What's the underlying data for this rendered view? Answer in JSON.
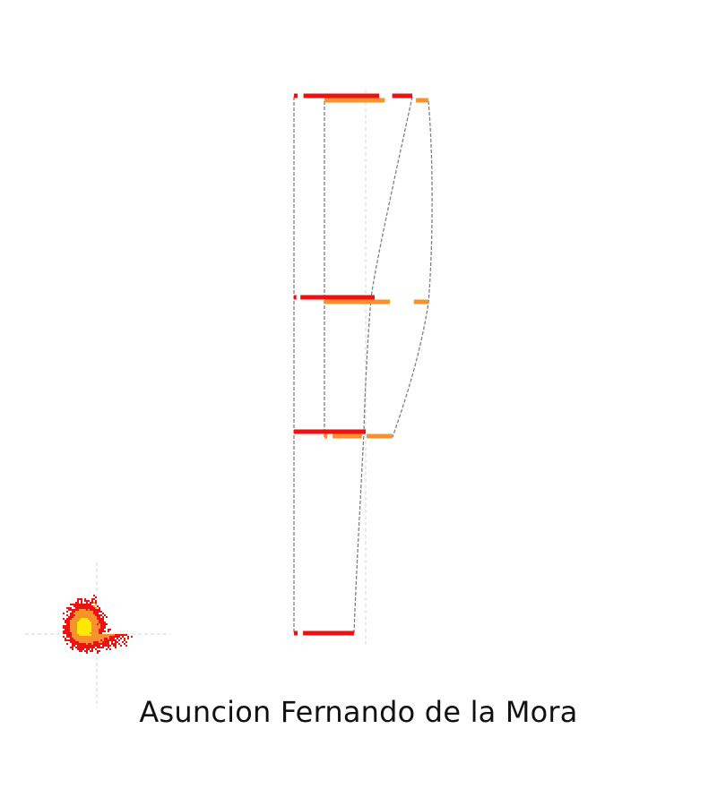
{
  "title": "Asuncion Fernando de la Mora",
  "colors": {
    "background": "#ffffff",
    "low": "#ee1111",
    "mid": "#f7922d",
    "high": "#ffe800",
    "connector": "#808080",
    "guide": "#d4d4d4"
  },
  "chart_data": {
    "type": "other",
    "title": "Asuncion Fernando de la Mora",
    "grid": false,
    "legend": "none",
    "rows": [
      {
        "level": 4,
        "series": [
          {
            "color_key": "low",
            "segments": [
              [
                0.0,
                0.03
              ],
              [
                0.08,
                0.72
              ],
              [
                0.83,
                1.0
              ]
            ],
            "extent": [
              0.0,
              1.0
            ]
          },
          {
            "color_key": "mid",
            "segments": [
              [
                0.0,
                0.58
              ],
              [
                0.88,
                1.0
              ]
            ],
            "extent": [
              0.0,
              1.0
            ]
          }
        ]
      },
      {
        "level": 3,
        "series": [
          {
            "color_key": "low",
            "segments": [
              [
                0.0,
                0.03
              ],
              [
                0.08,
                1.0
              ]
            ],
            "extent": [
              0.0,
              1.0
            ]
          },
          {
            "color_key": "mid",
            "segments": [
              [
                0.0,
                0.63
              ],
              [
                0.86,
                1.0
              ]
            ],
            "extent": [
              0.0,
              1.0
            ]
          }
        ]
      },
      {
        "level": 2,
        "series": [
          {
            "color_key": "low",
            "segments": [
              [
                0.0,
                1.0
              ]
            ],
            "extent": [
              0.0,
              1.0
            ]
          },
          {
            "color_key": "mid",
            "segments": [
              [
                0.0,
                0.04
              ],
              [
                0.12,
                0.55
              ],
              [
                0.62,
                1.0
              ]
            ],
            "extent": [
              0.0,
              1.0
            ]
          }
        ]
      },
      {
        "level": 1,
        "series": [
          {
            "color_key": "low",
            "segments": [
              [
                0.0,
                0.06
              ],
              [
                0.15,
                1.0
              ]
            ],
            "extent": [
              0.0,
              1.0
            ]
          }
        ]
      }
    ],
    "blob_colors": [
      "#ee1111",
      "#f7922d",
      "#ffe800"
    ]
  }
}
